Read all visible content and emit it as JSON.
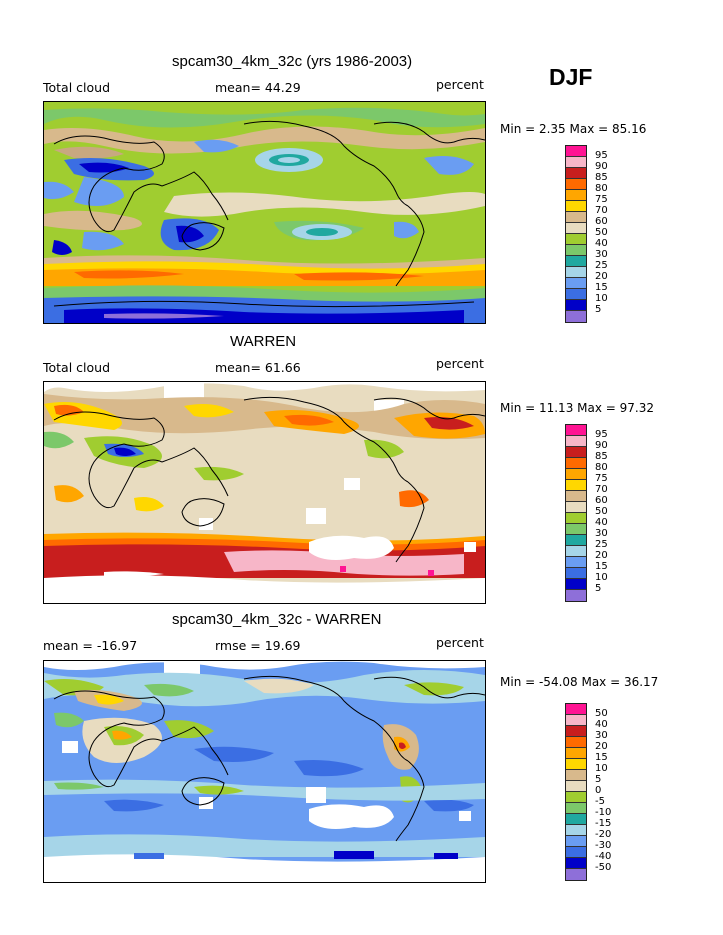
{
  "season": "DJF",
  "colors": {
    "levels13": [
      "#8e6fd9",
      "#0000c8",
      "#3b6ee3",
      "#6a9df2",
      "#a6d5e8",
      "#20a8a0",
      "#7cc86a",
      "#a0cd30",
      "#e0c9a0",
      "#c8a880",
      "#ffd700",
      "#ffa600",
      "#ff6a00",
      "#c81e1e",
      "#f7b6c8",
      "#ff1493"
    ]
  },
  "panels": [
    {
      "title": "spcam30_4km_32c (yrs 1986-2003)",
      "left_label": "Total cloud",
      "mid_label": "mean=  44.29",
      "right_label": "percent",
      "minmax": "Min =    2.35  Max =   85.16",
      "colorbar_labels": [
        "95",
        "90",
        "85",
        "80",
        "75",
        "70",
        "60",
        "50",
        "40",
        "30",
        "25",
        "20",
        "15",
        "10",
        "5"
      ],
      "colorbar_colors": [
        "#ff1493",
        "#f7b6c8",
        "#c81e1e",
        "#ff6a00",
        "#ffa600",
        "#ffd700",
        "#d8b98c",
        "#e8dcc0",
        "#a0cd30",
        "#7cc86a",
        "#20a8a0",
        "#a6d5e8",
        "#6a9df2",
        "#3b6ee3",
        "#0000c8",
        "#8e6fd9"
      ]
    },
    {
      "title": "WARREN",
      "left_label": "Total cloud",
      "mid_label": "mean=  61.66",
      "right_label": "percent",
      "minmax": "Min =   11.13  Max =   97.32",
      "colorbar_labels": [
        "95",
        "90",
        "85",
        "80",
        "75",
        "70",
        "60",
        "50",
        "40",
        "30",
        "25",
        "20",
        "15",
        "10",
        "5"
      ],
      "colorbar_colors": [
        "#ff1493",
        "#f7b6c8",
        "#c81e1e",
        "#ff6a00",
        "#ffa600",
        "#ffd700",
        "#d8b98c",
        "#e8dcc0",
        "#a0cd30",
        "#7cc86a",
        "#20a8a0",
        "#a6d5e8",
        "#6a9df2",
        "#3b6ee3",
        "#0000c8",
        "#8e6fd9"
      ]
    },
    {
      "title": "spcam30_4km_32c - WARREN",
      "left_label": "mean =  -16.97",
      "mid_label": "rmse =   19.69",
      "right_label": "percent",
      "minmax": "Min =  -54.08  Max =   36.17",
      "colorbar_labels": [
        "50",
        "40",
        "30",
        "20",
        "15",
        "10",
        "5",
        "0",
        "-5",
        "-10",
        "-15",
        "-20",
        "-30",
        "-40",
        "-50"
      ],
      "colorbar_colors": [
        "#ff1493",
        "#f7b6c8",
        "#c81e1e",
        "#ff6a00",
        "#ffa600",
        "#ffd700",
        "#d8b98c",
        "#e8dcc0",
        "#a0cd30",
        "#7cc86a",
        "#20a8a0",
        "#a6d5e8",
        "#6a9df2",
        "#3b6ee3",
        "#0000c8",
        "#8e6fd9"
      ]
    }
  ]
}
